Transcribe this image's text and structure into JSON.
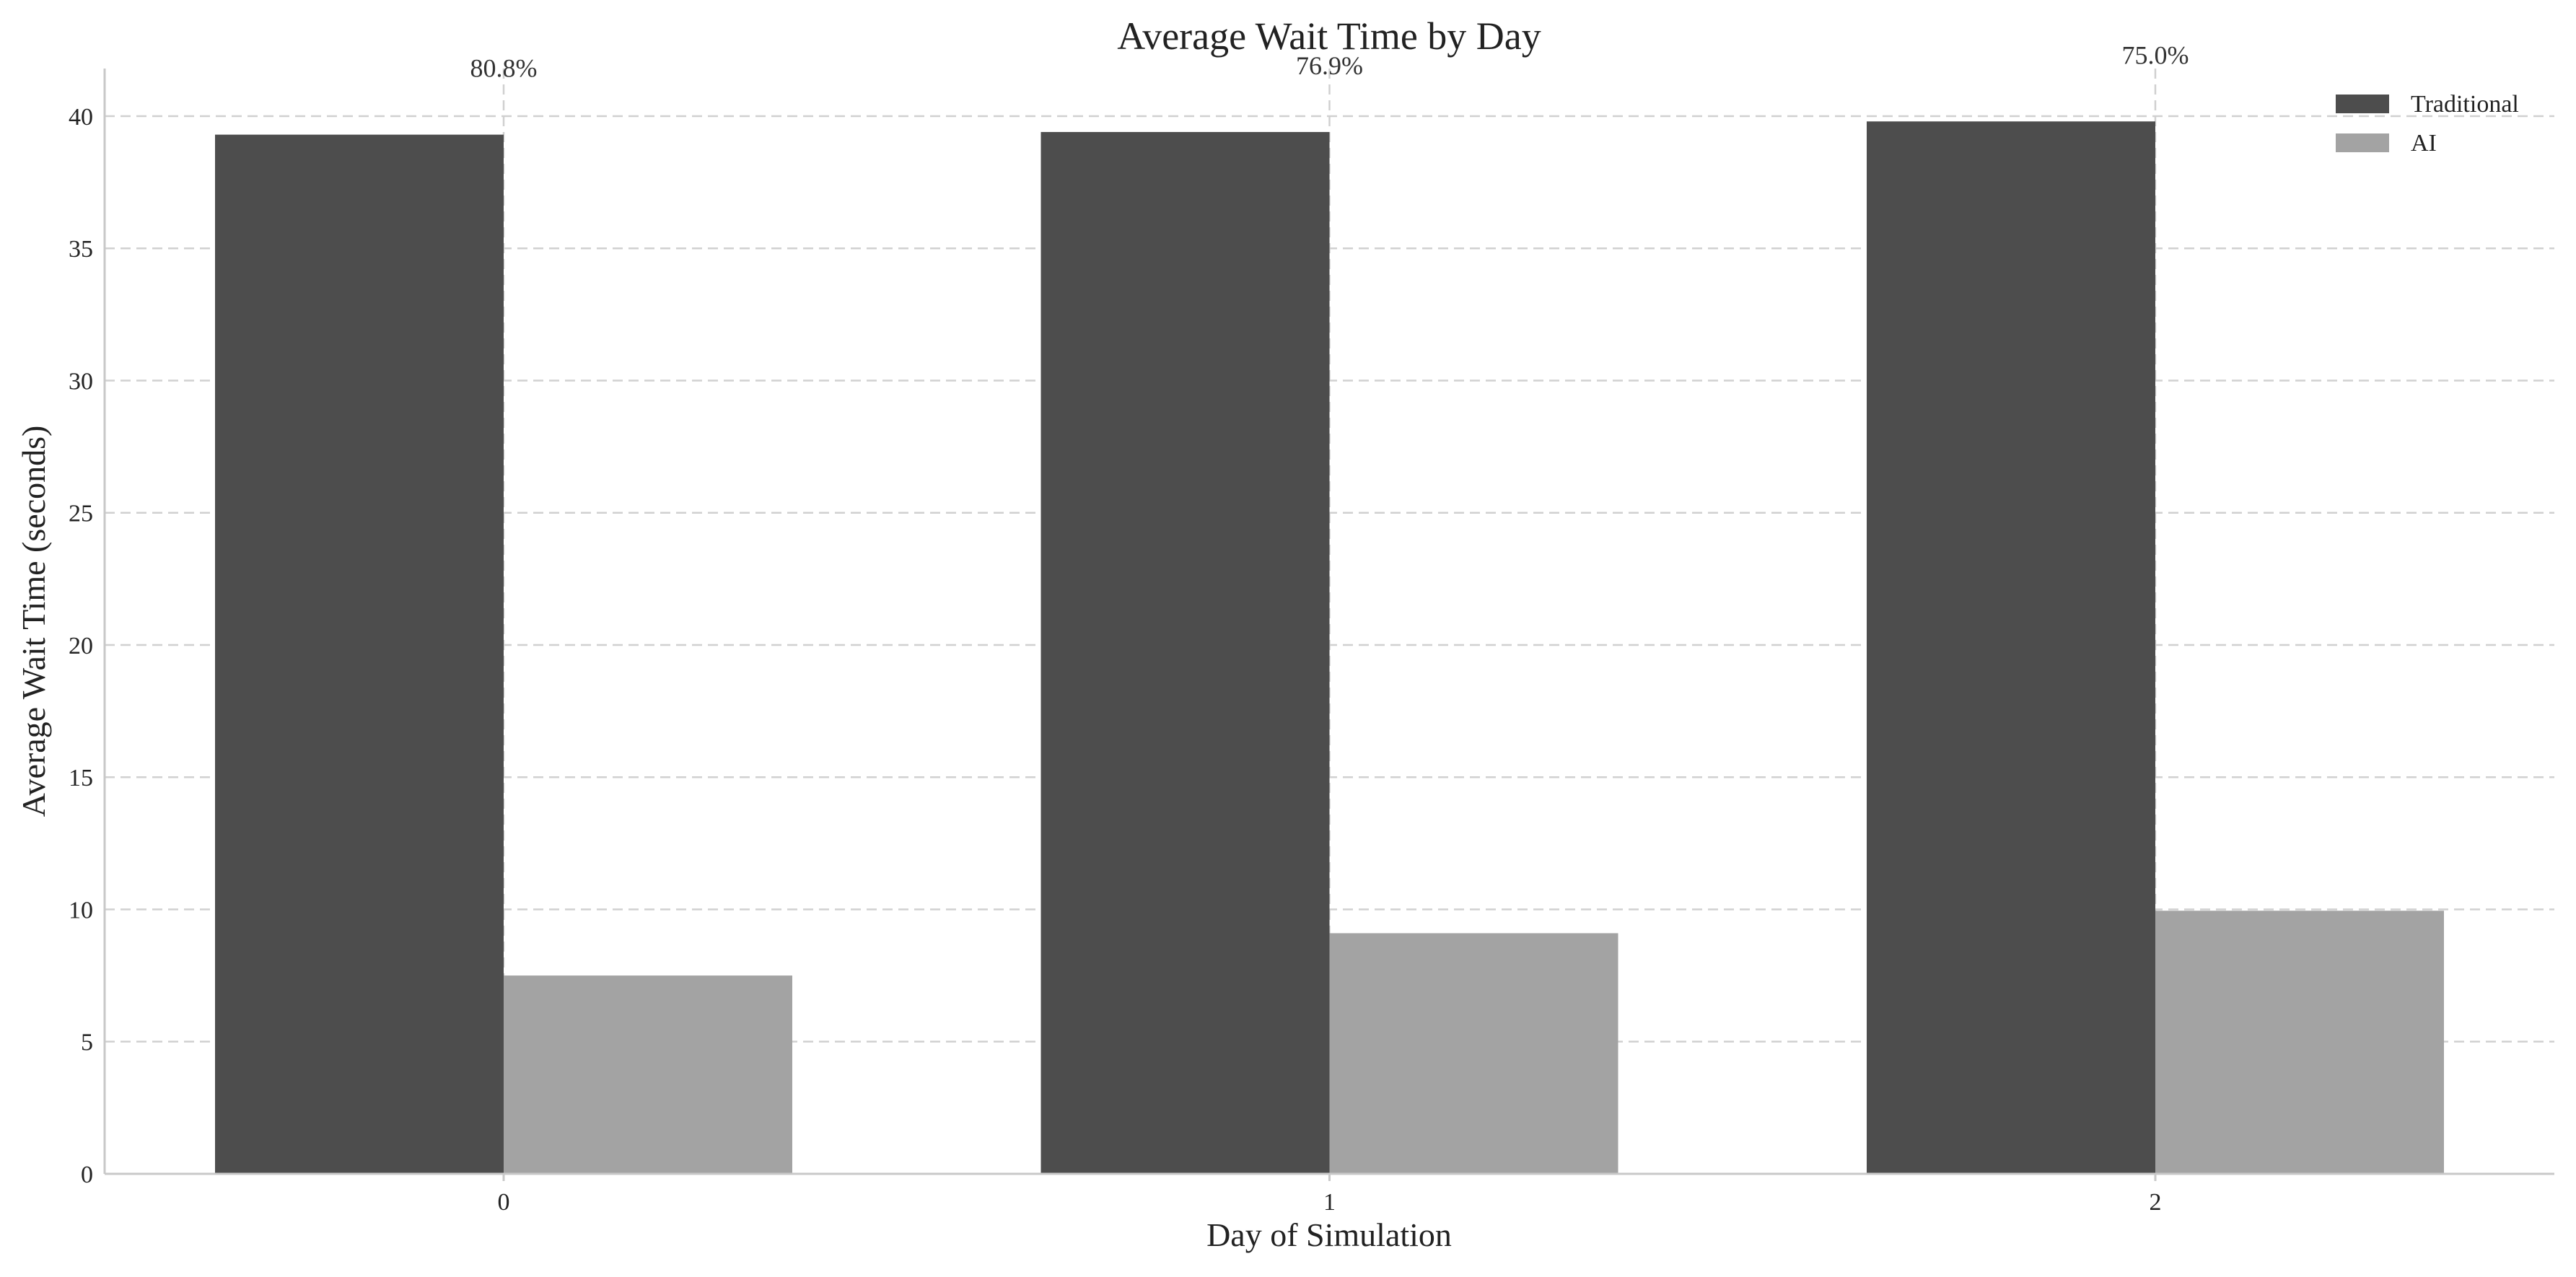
{
  "chart_data": {
    "type": "bar",
    "title": "Average Wait Time by Day",
    "xlabel": "Day of Simulation",
    "ylabel": "Average Wait Time (seconds)",
    "categories": [
      "0",
      "1",
      "2"
    ],
    "series": [
      {
        "name": "Traditional",
        "values": [
          39.3,
          39.4,
          39.8
        ],
        "color": "#4d4d4d"
      },
      {
        "name": "AI",
        "values": [
          7.5,
          9.1,
          9.95
        ],
        "color": "#a3a3a3"
      }
    ],
    "annotations": [
      "80.8%",
      "76.9%",
      "75.0%"
    ],
    "ylim": [
      0,
      41.8
    ],
    "yticks": [
      0,
      5,
      10,
      15,
      20,
      25,
      30,
      35,
      40
    ],
    "grid": true,
    "legend": "top-right"
  }
}
